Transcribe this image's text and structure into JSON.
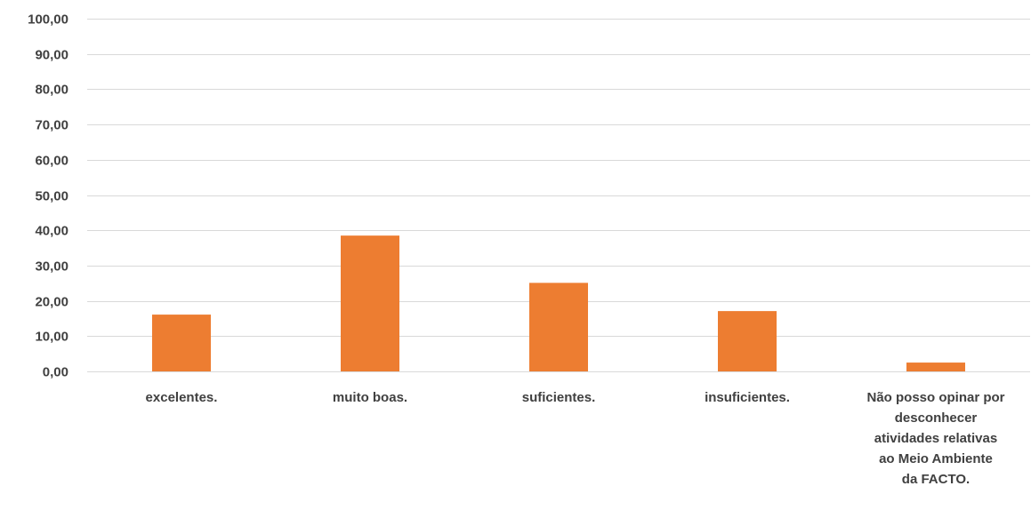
{
  "chart_data": {
    "type": "bar",
    "title": "",
    "xlabel": "",
    "ylabel": "",
    "ylim": [
      0,
      100
    ],
    "yticks": [
      "0,00",
      "10,00",
      "20,00",
      "30,00",
      "40,00",
      "50,00",
      "60,00",
      "70,00",
      "80,00",
      "90,00",
      "100,00"
    ],
    "ytick_values": [
      0,
      10,
      20,
      30,
      40,
      50,
      60,
      70,
      80,
      90,
      100
    ],
    "grid": true,
    "legend": "none",
    "bar_color": "#ed7d31",
    "categories": [
      [
        "excelentes."
      ],
      [
        "muito boas."
      ],
      [
        "suficientes."
      ],
      [
        "insuficientes."
      ],
      [
        "Não posso opinar por",
        "desconhecer",
        "atividades relativas",
        "ao Meio Ambiente",
        "da FACTO."
      ]
    ],
    "values": [
      16.1,
      38.5,
      25.1,
      17.1,
      2.5
    ]
  }
}
